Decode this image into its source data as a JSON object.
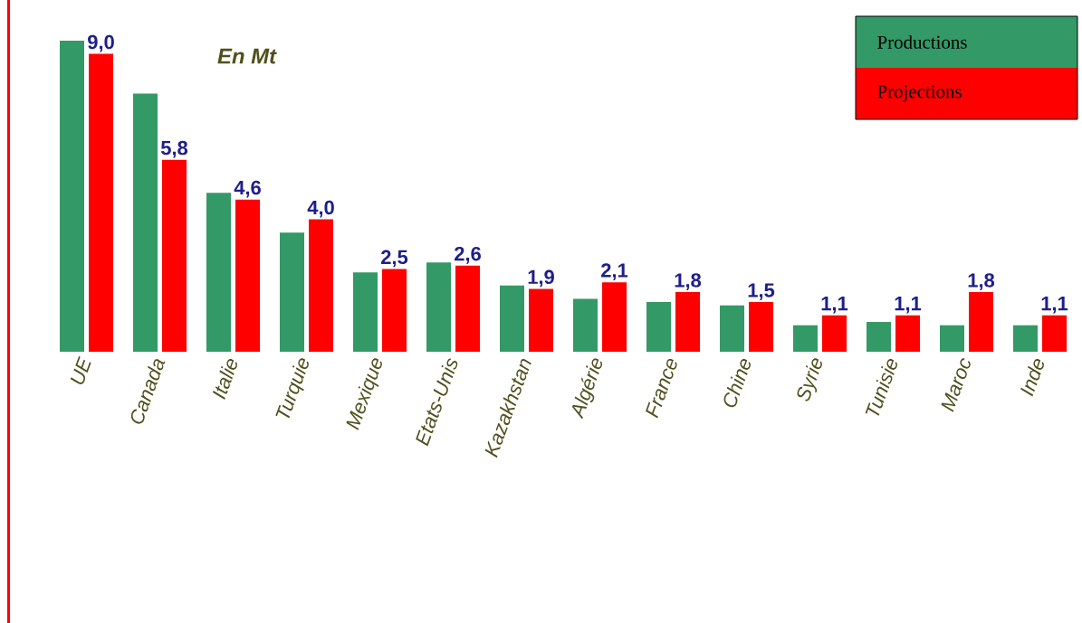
{
  "chart_data": {
    "type": "bar",
    "annotations": [
      "En Mt"
    ],
    "categories": [
      "UE",
      "Canada",
      "Italie",
      "Turquie",
      "Mexique",
      "Etats-Unis",
      "Kazakhstan",
      "Algérie",
      "France",
      "Chine",
      "Syrie",
      "Tunisie",
      "Maroc",
      "Inde"
    ],
    "series": [
      {
        "name": "Productions",
        "color": "#339966",
        "values": [
          9.4,
          7.8,
          4.8,
          3.6,
          2.4,
          2.7,
          2.0,
          1.6,
          1.5,
          1.4,
          0.8,
          0.9,
          0.8,
          0.8
        ]
      },
      {
        "name": "Projections",
        "color": "#ff0000",
        "values": [
          9.0,
          5.8,
          4.6,
          4.0,
          2.5,
          2.6,
          1.9,
          2.1,
          1.8,
          1.5,
          1.1,
          1.1,
          1.8,
          1.1
        ],
        "value_labels": [
          "9,0",
          "5,8",
          "4,6",
          "4,0",
          "2,5",
          "2,6",
          "1,9",
          "2,1",
          "1,8",
          "1,5",
          "1,1",
          "1,1",
          "1,8",
          "1,1"
        ]
      }
    ],
    "legend": "top right"
  }
}
